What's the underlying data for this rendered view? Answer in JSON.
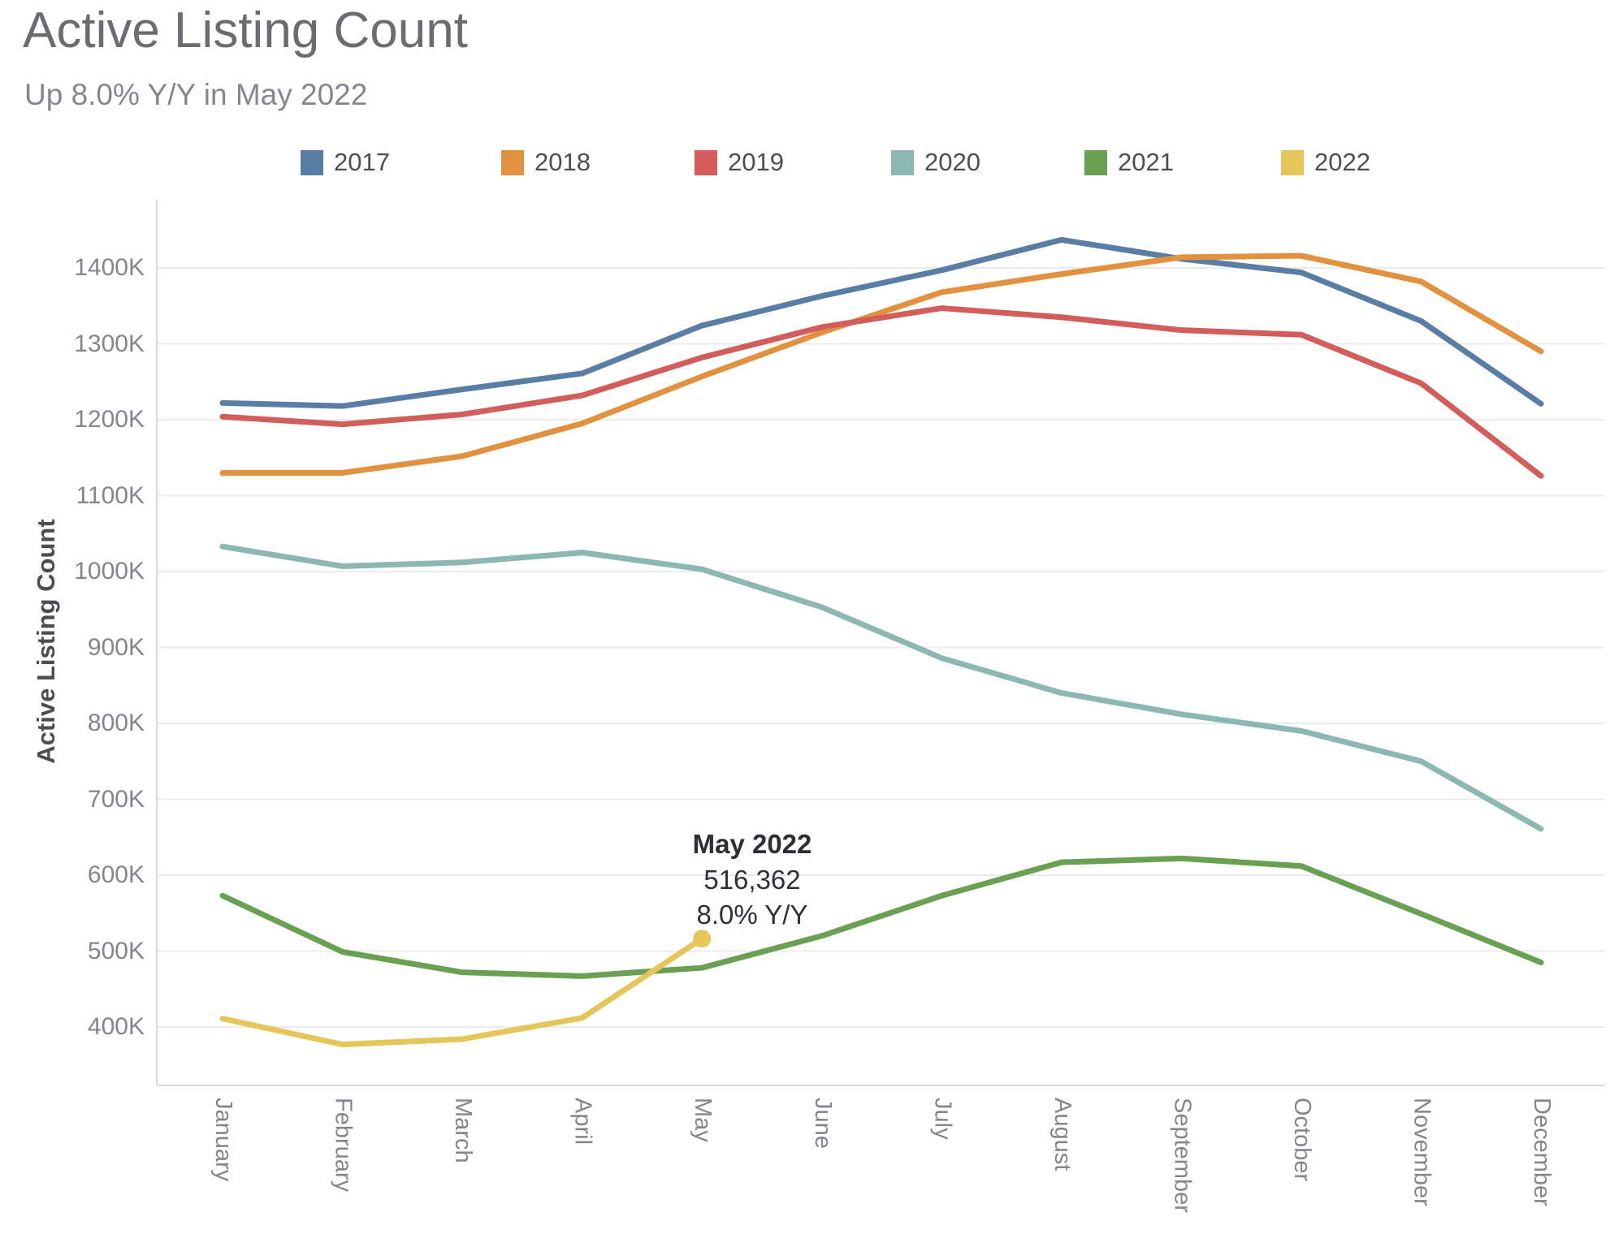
{
  "page": {
    "title": "Active Listing Count",
    "subtitle": "Up 8.0% Y/Y in May 2022"
  },
  "axes": {
    "y_title": "Active Listing Count",
    "y_tick_suffix": "K"
  },
  "annotation": {
    "title": "May 2022",
    "value": "516,362",
    "yoy": "8.0% Y/Y"
  },
  "chart_data": {
    "type": "line",
    "title": "Active Listing Count",
    "subtitle": "Up 8.0% Y/Y in May 2022",
    "unit": "thousands",
    "xlabel": "",
    "ylabel": "Active Listing Count",
    "categories": [
      "January",
      "February",
      "March",
      "April",
      "May",
      "June",
      "July",
      "August",
      "September",
      "October",
      "November",
      "December"
    ],
    "yticks": [
      400,
      500,
      600,
      700,
      800,
      900,
      1000,
      1100,
      1200,
      1300,
      1400
    ],
    "ylim": [
      350,
      1480
    ],
    "grid": "horizontal",
    "legend_position": "top",
    "series": [
      {
        "name": "2017",
        "color": "#5a7da5",
        "values": [
          1222,
          1218,
          1240,
          1261,
          1324,
          1363,
          1397,
          1437,
          1412,
          1394,
          1330,
          1221
        ]
      },
      {
        "name": "2018",
        "color": "#e2913e",
        "values": [
          1130,
          1130,
          1152,
          1195,
          1257,
          1315,
          1368,
          1392,
          1414,
          1416,
          1382,
          1290
        ]
      },
      {
        "name": "2019",
        "color": "#d25d5b",
        "values": [
          1204,
          1194,
          1207,
          1232,
          1282,
          1322,
          1347,
          1335,
          1318,
          1312,
          1248,
          1126
        ]
      },
      {
        "name": "2020",
        "color": "#8db8b2",
        "values": [
          1033,
          1007,
          1012,
          1025,
          1003,
          953,
          886,
          840,
          812,
          790,
          750,
          661
        ]
      },
      {
        "name": "2021",
        "color": "#6aa052",
        "values": [
          573,
          499,
          472,
          467,
          478,
          520,
          573,
          617,
          622,
          612,
          549,
          485
        ]
      },
      {
        "name": "2022",
        "color": "#e5c65a",
        "values": [
          411,
          377,
          384,
          412,
          516.362
        ],
        "end_dot": true
      }
    ],
    "annotation": {
      "label": "May 2022",
      "value": "516,362",
      "yoy": "8.0% Y/Y",
      "x": "May",
      "y": 516.362
    }
  }
}
